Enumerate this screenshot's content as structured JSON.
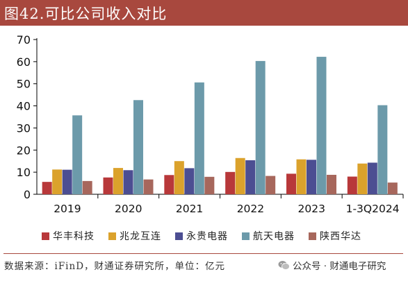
{
  "header": {
    "title": "图42.可比公司收入对比"
  },
  "chart_data": {
    "type": "bar",
    "categories": [
      "2019",
      "2020",
      "2021",
      "2022",
      "2023",
      "1-3Q2024"
    ],
    "ylim": [
      0,
      70
    ],
    "yticks": [
      0,
      10,
      20,
      30,
      40,
      50,
      60,
      70
    ],
    "grid": false,
    "legend_position": "bottom",
    "series": [
      {
        "name": "华丰科技",
        "color": "#b8383a",
        "values": [
          5.6,
          7.6,
          8.7,
          10.1,
          9.3,
          8.0
        ]
      },
      {
        "name": "兆龙互连",
        "color": "#dba22c",
        "values": [
          11.2,
          11.9,
          15.0,
          16.4,
          15.8,
          13.9
        ]
      },
      {
        "name": "永贵电器",
        "color": "#4c4e92",
        "values": [
          11.1,
          10.9,
          11.8,
          15.4,
          15.6,
          14.3
        ]
      },
      {
        "name": "航天电器",
        "color": "#6c9aaa",
        "values": [
          35.7,
          42.6,
          50.6,
          60.3,
          62.2,
          40.3
        ]
      },
      {
        "name": "陕西华达",
        "color": "#a7675c",
        "values": [
          6.0,
          6.7,
          7.9,
          8.3,
          8.8,
          5.3
        ]
      }
    ]
  },
  "footer": {
    "source": "数据来源：iFinD，财通证券研究所，单位：亿元",
    "watermark": "公众号 · 财通电子研究"
  }
}
